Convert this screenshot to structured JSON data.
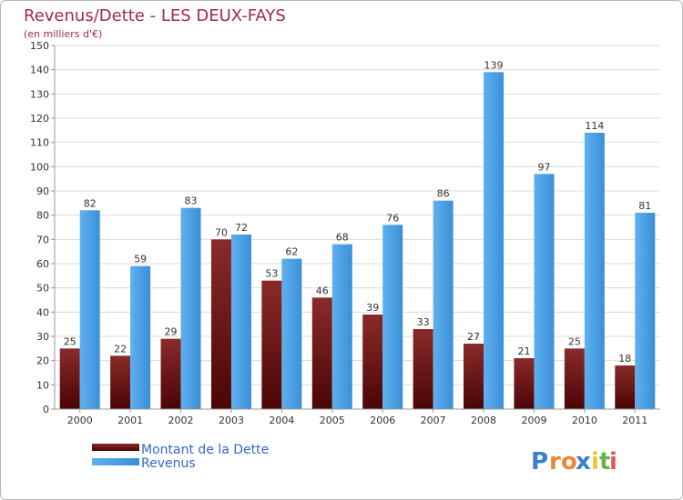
{
  "chart_data": {
    "type": "bar",
    "title": "Revenus/Dette - LES DEUX-FAYS",
    "subtitle": "(en milliers d'€)",
    "categories": [
      "2000",
      "2001",
      "2002",
      "2003",
      "2004",
      "2005",
      "2006",
      "2007",
      "2008",
      "2009",
      "2010",
      "2011"
    ],
    "series": [
      {
        "name": "Montant de la Dette",
        "color": "#7a1313",
        "values": [
          25,
          22,
          29,
          70,
          53,
          46,
          39,
          33,
          27,
          21,
          25,
          18
        ]
      },
      {
        "name": "Revenus",
        "color": "#4da3e6",
        "values": [
          82,
          59,
          83,
          72,
          62,
          68,
          76,
          86,
          139,
          97,
          114,
          81
        ]
      }
    ],
    "ylim": [
      0,
      150
    ],
    "yticks": [
      0,
      10,
      20,
      30,
      40,
      50,
      60,
      70,
      80,
      90,
      100,
      110,
      120,
      130,
      140,
      150
    ],
    "grid": true,
    "legend_position": "bottom-left"
  },
  "logo": {
    "text": "Proxiti",
    "letters": [
      "P",
      "r",
      "o",
      "x",
      "i",
      "t",
      "i"
    ],
    "colors": [
      "#3a7fd0",
      "#e8883a",
      "#e8883a",
      "#3a7fd0",
      "#e8c93a",
      "#6ab04c",
      "#e05a5a"
    ]
  }
}
